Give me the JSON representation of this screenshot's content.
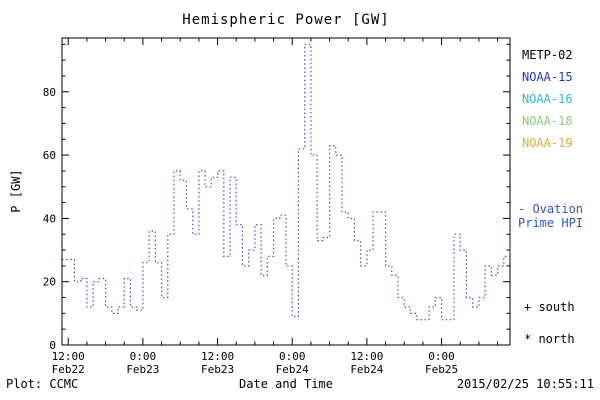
{
  "title": "Hemispheric Power [GW]",
  "ylabel": "P [GW]",
  "xlabel": "Date and Time",
  "footer": {
    "plot_credit": "Plot: CCMC",
    "timestamp": "2015/02/25 10:55:11"
  },
  "legend": {
    "satellites": [
      {
        "label": "METP-02",
        "color": "#000000"
      },
      {
        "label": "NOAA-15",
        "color": "#2233cc"
      },
      {
        "label": "NOAA-16",
        "color": "#33bbcc"
      },
      {
        "label": "NOAA-18",
        "color": "#88cc77"
      },
      {
        "label": "NOAA-19",
        "color": "#ddaa44"
      }
    ],
    "line_label": {
      "line1": "- Ovation",
      "line2": "Prime HPI",
      "color": "#3355bb"
    },
    "south_marker": "+ south",
    "north_marker": "* north"
  },
  "chart_data": {
    "type": "line",
    "style": "dotted step line",
    "title": "Hemispheric Power [GW]",
    "xlabel": "Date and Time",
    "ylabel": "P [GW]",
    "line_color": "#3355bb",
    "legend_position": "right",
    "grid": false,
    "ylim": [
      0,
      97
    ],
    "yticks": [
      0,
      20,
      40,
      60,
      80
    ],
    "y_minor_step": 5,
    "x_hours_range": [
      0,
      72
    ],
    "x_minor_step": 3,
    "xticks": [
      {
        "hour": 1,
        "time": "12:00",
        "date": "Feb22"
      },
      {
        "hour": 13,
        "time": "0:00",
        "date": "Feb23"
      },
      {
        "hour": 25,
        "time": "12:00",
        "date": "Feb23"
      },
      {
        "hour": 37,
        "time": "0:00",
        "date": "Feb24"
      },
      {
        "hour": 49,
        "time": "12:00",
        "date": "Feb24"
      },
      {
        "hour": 61,
        "time": "0:00",
        "date": "Feb25"
      }
    ],
    "series": [
      {
        "name": "Ovation Prime HPI",
        "start_hour": 0,
        "step_hours": 1,
        "values": [
          27,
          27,
          20,
          21,
          12,
          20,
          21,
          12,
          10,
          12,
          21,
          12,
          11,
          26,
          36,
          26,
          15,
          35,
          55,
          52,
          43,
          35,
          55,
          50,
          53,
          55,
          28,
          53,
          38,
          25,
          30,
          38,
          22,
          28,
          40,
          41,
          25,
          9,
          62,
          95,
          60,
          33,
          34,
          63,
          60,
          42,
          40,
          33,
          25,
          30,
          42,
          42,
          25,
          22,
          15,
          12,
          10,
          8,
          8,
          12,
          15,
          8,
          8,
          35,
          30,
          15,
          12,
          15,
          25,
          22,
          25,
          28,
          40
        ]
      }
    ]
  }
}
